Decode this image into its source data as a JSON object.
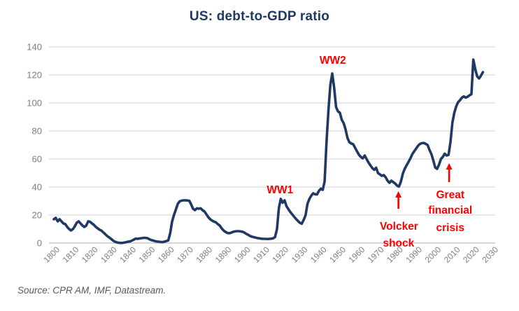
{
  "header": {
    "title": "US: debt-to-GDP ratio"
  },
  "footer": {
    "source": "Source: CPR AM, IMF, Datastream."
  },
  "colors": {
    "background": "#ffffff",
    "line": "#1f3864",
    "title": "#1f3864",
    "annotation": "#ff0000",
    "gridline": "#d9d9d9",
    "axis_line": "#bfbfbf",
    "tick_label": "#7f7f7f",
    "source_text": "#595959"
  },
  "chart_data": {
    "type": "line",
    "title": "US: debt-to-GDP ratio",
    "xlabel": "",
    "ylabel": "",
    "xlim": [
      1800,
      2030
    ],
    "ylim": [
      0,
      140
    ],
    "x_ticks": [
      1800,
      1810,
      1820,
      1830,
      1840,
      1850,
      1860,
      1870,
      1880,
      1890,
      1900,
      1910,
      1920,
      1930,
      1940,
      1950,
      1960,
      1970,
      1980,
      1990,
      2000,
      2010,
      2020,
      2030
    ],
    "y_ticks": [
      0,
      20,
      40,
      60,
      80,
      100,
      120,
      140
    ],
    "grid": "horizontal",
    "legend": "none",
    "series": [
      {
        "name": "US debt-to-GDP ratio (%)",
        "points": [
          [
            1800,
            17
          ],
          [
            1801,
            18
          ],
          [
            1802,
            15.5
          ],
          [
            1803,
            17
          ],
          [
            1804,
            15.5
          ],
          [
            1805,
            14
          ],
          [
            1806,
            13.5
          ],
          [
            1807,
            11.5
          ],
          [
            1808,
            10
          ],
          [
            1809,
            9
          ],
          [
            1810,
            10
          ],
          [
            1811,
            12
          ],
          [
            1812,
            14.5
          ],
          [
            1813,
            15.5
          ],
          [
            1814,
            14
          ],
          [
            1815,
            12.5
          ],
          [
            1816,
            11.5
          ],
          [
            1817,
            12.5
          ],
          [
            1818,
            15.5
          ],
          [
            1819,
            15.2
          ],
          [
            1820,
            14
          ],
          [
            1821,
            13
          ],
          [
            1822,
            11.5
          ],
          [
            1823,
            10.5
          ],
          [
            1824,
            9.5
          ],
          [
            1825,
            8.8
          ],
          [
            1826,
            7.5
          ],
          [
            1827,
            6.3
          ],
          [
            1828,
            5
          ],
          [
            1829,
            4
          ],
          [
            1830,
            3
          ],
          [
            1831,
            1.8
          ],
          [
            1832,
            1
          ],
          [
            1833,
            0.5
          ],
          [
            1834,
            0.2
          ],
          [
            1835,
            0.1
          ],
          [
            1836,
            0.1
          ],
          [
            1837,
            0.4
          ],
          [
            1838,
            0.7
          ],
          [
            1839,
            1
          ],
          [
            1840,
            1.2
          ],
          [
            1841,
            1.8
          ],
          [
            1842,
            2.5
          ],
          [
            1843,
            3.2
          ],
          [
            1844,
            3
          ],
          [
            1845,
            3.3
          ],
          [
            1846,
            3.5
          ],
          [
            1847,
            3.7
          ],
          [
            1848,
            3.7
          ],
          [
            1849,
            3.5
          ],
          [
            1850,
            2.8
          ],
          [
            1851,
            2.2
          ],
          [
            1852,
            1.8
          ],
          [
            1853,
            1.4
          ],
          [
            1854,
            1.1
          ],
          [
            1855,
            1
          ],
          [
            1856,
            0.8
          ],
          [
            1857,
            0.7
          ],
          [
            1858,
            1
          ],
          [
            1859,
            1.4
          ],
          [
            1860,
            1.9
          ],
          [
            1861,
            7
          ],
          [
            1862,
            15.3
          ],
          [
            1863,
            20
          ],
          [
            1864,
            24
          ],
          [
            1865,
            28
          ],
          [
            1866,
            29.8
          ],
          [
            1867,
            30.3
          ],
          [
            1868,
            30.5
          ],
          [
            1869,
            30.5
          ],
          [
            1870,
            30.4
          ],
          [
            1871,
            30.2
          ],
          [
            1872,
            27.5
          ],
          [
            1873,
            24.5
          ],
          [
            1874,
            23.5
          ],
          [
            1875,
            24.8
          ],
          [
            1876,
            24.5
          ],
          [
            1877,
            24.8
          ],
          [
            1878,
            23.5
          ],
          [
            1879,
            22.5
          ],
          [
            1880,
            20.5
          ],
          [
            1881,
            18.5
          ],
          [
            1882,
            17
          ],
          [
            1883,
            16
          ],
          [
            1884,
            15.3
          ],
          [
            1885,
            14.8
          ],
          [
            1886,
            13.5
          ],
          [
            1887,
            12.5
          ],
          [
            1888,
            10.5
          ],
          [
            1889,
            9
          ],
          [
            1890,
            8
          ],
          [
            1891,
            7.2
          ],
          [
            1892,
            7
          ],
          [
            1893,
            7.4
          ],
          [
            1894,
            8
          ],
          [
            1895,
            8.3
          ],
          [
            1896,
            8.5
          ],
          [
            1897,
            8.5
          ],
          [
            1898,
            8.3
          ],
          [
            1899,
            8
          ],
          [
            1900,
            7.4
          ],
          [
            1901,
            6.5
          ],
          [
            1902,
            5.8
          ],
          [
            1903,
            5
          ],
          [
            1904,
            4.5
          ],
          [
            1905,
            4.2
          ],
          [
            1906,
            3.8
          ],
          [
            1907,
            3.5
          ],
          [
            1908,
            3.3
          ],
          [
            1909,
            3.1
          ],
          [
            1910,
            3
          ],
          [
            1911,
            3
          ],
          [
            1912,
            2.9
          ],
          [
            1913,
            3
          ],
          [
            1914,
            3.1
          ],
          [
            1915,
            3.4
          ],
          [
            1916,
            4.2
          ],
          [
            1917,
            10
          ],
          [
            1918,
            25
          ],
          [
            1919,
            31.5
          ],
          [
            1920,
            28.8
          ],
          [
            1921,
            30.5
          ],
          [
            1922,
            26.3
          ],
          [
            1923,
            24.2
          ],
          [
            1924,
            22.2
          ],
          [
            1925,
            20.5
          ],
          [
            1926,
            18.8
          ],
          [
            1927,
            17.2
          ],
          [
            1928,
            15.8
          ],
          [
            1929,
            14.5
          ],
          [
            1930,
            13.8
          ],
          [
            1931,
            16.5
          ],
          [
            1932,
            19.7
          ],
          [
            1933,
            28
          ],
          [
            1934,
            31.5
          ],
          [
            1935,
            33.8
          ],
          [
            1936,
            35.5
          ],
          [
            1937,
            34.8
          ],
          [
            1938,
            34.7
          ],
          [
            1939,
            37.2
          ],
          [
            1940,
            38.8
          ],
          [
            1941,
            38
          ],
          [
            1942,
            44
          ],
          [
            1943,
            72
          ],
          [
            1944,
            95
          ],
          [
            1945,
            113
          ],
          [
            1946,
            121
          ],
          [
            1947,
            111
          ],
          [
            1948,
            97
          ],
          [
            1949,
            94
          ],
          [
            1950,
            93
          ],
          [
            1951,
            88
          ],
          [
            1952,
            85.5
          ],
          [
            1953,
            81
          ],
          [
            1954,
            75
          ],
          [
            1955,
            72
          ],
          [
            1956,
            71
          ],
          [
            1957,
            70.5
          ],
          [
            1958,
            68
          ],
          [
            1959,
            65.5
          ],
          [
            1960,
            63
          ],
          [
            1961,
            61.5
          ],
          [
            1962,
            60.5
          ],
          [
            1963,
            62.5
          ],
          [
            1964,
            60
          ],
          [
            1965,
            57.5
          ],
          [
            1966,
            55.5
          ],
          [
            1967,
            53.5
          ],
          [
            1968,
            52.3
          ],
          [
            1969,
            53.8
          ],
          [
            1970,
            50
          ],
          [
            1971,
            49
          ],
          [
            1972,
            48
          ],
          [
            1973,
            48.5
          ],
          [
            1974,
            47
          ],
          [
            1975,
            44.5
          ],
          [
            1976,
            43
          ],
          [
            1977,
            44.5
          ],
          [
            1978,
            43.5
          ],
          [
            1979,
            42.5
          ],
          [
            1980,
            41
          ],
          [
            1981,
            40.3
          ],
          [
            1982,
            43.8
          ],
          [
            1983,
            49.5
          ],
          [
            1984,
            53
          ],
          [
            1985,
            55.5
          ],
          [
            1986,
            58
          ],
          [
            1987,
            60.5
          ],
          [
            1988,
            63.5
          ],
          [
            1989,
            65.5
          ],
          [
            1990,
            67.5
          ],
          [
            1991,
            69.5
          ],
          [
            1992,
            70.8
          ],
          [
            1993,
            71.3
          ],
          [
            1994,
            71.5
          ],
          [
            1995,
            70.8
          ],
          [
            1996,
            70
          ],
          [
            1997,
            66.5
          ],
          [
            1998,
            63.5
          ],
          [
            1999,
            59
          ],
          [
            2000,
            54
          ],
          [
            2001,
            53
          ],
          [
            2002,
            56
          ],
          [
            2003,
            60
          ],
          [
            2004,
            61.5
          ],
          [
            2005,
            63.8
          ],
          [
            2006,
            62.5
          ],
          [
            2007,
            63
          ],
          [
            2008,
            72
          ],
          [
            2009,
            86
          ],
          [
            2010,
            93
          ],
          [
            2011,
            97.5
          ],
          [
            2012,
            100.5
          ],
          [
            2013,
            102
          ],
          [
            2014,
            103.8
          ],
          [
            2015,
            104.7
          ],
          [
            2016,
            103.8
          ],
          [
            2017,
            104.5
          ],
          [
            2018,
            105.5
          ],
          [
            2019,
            106.3
          ],
          [
            2020,
            131
          ],
          [
            2021,
            124
          ],
          [
            2022,
            119
          ],
          [
            2023,
            117.5
          ],
          [
            2024,
            119.5
          ],
          [
            2025,
            122
          ]
        ]
      }
    ],
    "annotations": [
      {
        "label": "WW1",
        "year": 1918.6,
        "value": 38
      },
      {
        "label": "WW2",
        "year": 1946.3,
        "value": 130.5
      },
      {
        "label": "Volcker",
        "year": 1981.0,
        "value": 12
      },
      {
        "label": "shock",
        "year": 1980.8,
        "value": 0
      },
      {
        "label": "Great",
        "year": 2007.9,
        "value": 34.5
      },
      {
        "label": "financial",
        "year": 2007.9,
        "value": 23.5
      },
      {
        "label": "crisis",
        "year": 2007.9,
        "value": 11
      }
    ],
    "arrows": [
      {
        "year": 1980.7,
        "from_value": 24.5,
        "to_value": 37
      },
      {
        "year": 2007.3,
        "from_value": 43.5,
        "to_value": 57
      }
    ]
  }
}
